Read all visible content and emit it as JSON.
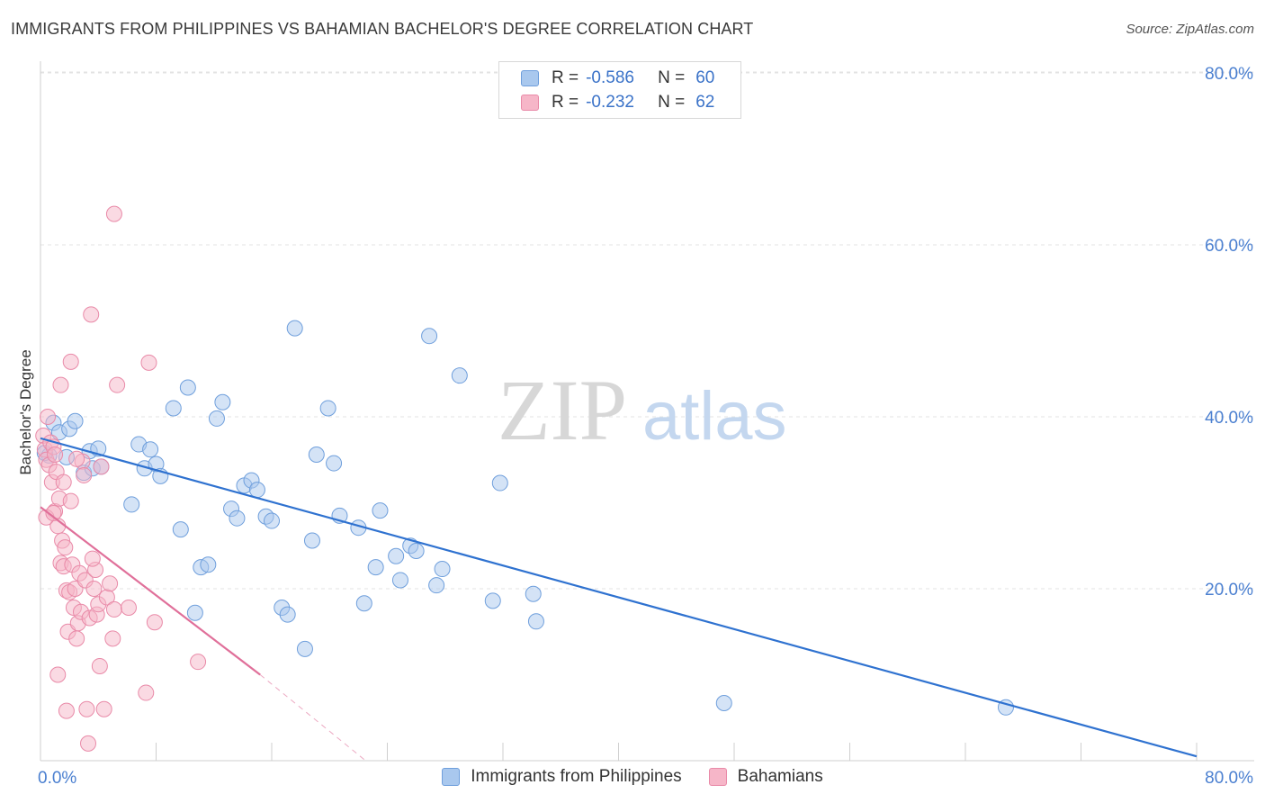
{
  "header": {
    "title": "IMMIGRANTS FROM PHILIPPINES VS BAHAMIAN BACHELOR'S DEGREE CORRELATION CHART",
    "source": "Source: ZipAtlas.com"
  },
  "watermark": {
    "zip": "ZIP",
    "atlas": "atlas"
  },
  "legend": {
    "rows": [
      {
        "r_label": "R =",
        "r_value": "-0.586",
        "n_label": "N =",
        "n_value": "60",
        "color": "#a9c8ee"
      },
      {
        "r_label": "R =",
        "r_value": "-0.232",
        "n_label": "N =",
        "n_value": "62",
        "color": "#f6b6c8"
      }
    ]
  },
  "chart_data": {
    "type": "scatter",
    "title": "IMMIGRANTS FROM PHILIPPINES VS BAHAMIAN BACHELOR'S DEGREE CORRELATION CHART",
    "xlabel": "",
    "ylabel": "Bachelor's Degree",
    "xlim": [
      0,
      80
    ],
    "ylim": [
      0,
      80
    ],
    "x_tick_labels": [
      "0.0%",
      "80.0%"
    ],
    "y_tick_labels": [
      "20.0%",
      "40.0%",
      "60.0%",
      "80.0%"
    ],
    "y_tick_values": [
      20,
      40,
      60,
      80
    ],
    "grid": true,
    "legend_position": "top-center",
    "series": [
      {
        "name": "Immigrants from Philippines",
        "color": "#a9c8ee",
        "stroke": "#6f9fdc",
        "trend_color": "#2f72d0",
        "trend": {
          "x0": 0,
          "y0": 37.5,
          "x1": 80,
          "y1": 0.5
        },
        "points": [
          [
            0.6,
            35.5
          ],
          [
            0.9,
            39.3
          ],
          [
            1.3,
            38.2
          ],
          [
            1.8,
            35.3
          ],
          [
            2.0,
            38.6
          ],
          [
            2.4,
            39.5
          ],
          [
            3.0,
            33.5
          ],
          [
            3.4,
            36.0
          ],
          [
            3.6,
            34.0
          ],
          [
            4.0,
            36.3
          ],
          [
            4.2,
            34.2
          ],
          [
            6.3,
            29.8
          ],
          [
            6.8,
            36.8
          ],
          [
            7.2,
            34.0
          ],
          [
            7.6,
            36.2
          ],
          [
            8.0,
            34.5
          ],
          [
            8.3,
            33.1
          ],
          [
            9.2,
            41.0
          ],
          [
            9.7,
            26.9
          ],
          [
            10.2,
            43.4
          ],
          [
            10.7,
            17.2
          ],
          [
            11.1,
            22.5
          ],
          [
            11.6,
            22.8
          ],
          [
            12.2,
            39.8
          ],
          [
            12.6,
            41.7
          ],
          [
            13.2,
            29.3
          ],
          [
            13.6,
            28.2
          ],
          [
            14.1,
            32.0
          ],
          [
            14.6,
            32.6
          ],
          [
            15.0,
            31.5
          ],
          [
            15.6,
            28.4
          ],
          [
            16.0,
            27.9
          ],
          [
            16.7,
            17.8
          ],
          [
            17.1,
            17.0
          ],
          [
            17.6,
            50.3
          ],
          [
            18.3,
            13.0
          ],
          [
            18.8,
            25.6
          ],
          [
            19.1,
            35.6
          ],
          [
            19.9,
            41.0
          ],
          [
            20.3,
            34.6
          ],
          [
            20.7,
            28.5
          ],
          [
            22.0,
            27.1
          ],
          [
            22.4,
            18.3
          ],
          [
            23.2,
            22.5
          ],
          [
            23.5,
            29.1
          ],
          [
            24.6,
            23.8
          ],
          [
            24.9,
            21.0
          ],
          [
            25.6,
            25.0
          ],
          [
            26.0,
            24.4
          ],
          [
            26.9,
            49.4
          ],
          [
            27.4,
            20.4
          ],
          [
            27.8,
            22.3
          ],
          [
            29.0,
            44.8
          ],
          [
            31.3,
            18.6
          ],
          [
            31.8,
            32.3
          ],
          [
            34.1,
            19.4
          ],
          [
            34.3,
            16.2
          ],
          [
            47.3,
            6.7
          ],
          [
            66.8,
            6.2
          ],
          [
            0.3,
            35.8
          ]
        ]
      },
      {
        "name": "Bahamians",
        "color": "#f6b6c8",
        "stroke": "#e98aa8",
        "trend_color": "#e0709a",
        "trend": {
          "x0": 0,
          "y0": 29.5,
          "x1": 15.2,
          "y1": 10.0
        },
        "trend_dash": {
          "x0": 15.2,
          "y0": 10.0,
          "x1": 22.5,
          "y1": 0.0
        },
        "points": [
          [
            0.2,
            37.8
          ],
          [
            0.3,
            36.2
          ],
          [
            0.4,
            35.0
          ],
          [
            0.5,
            40.0
          ],
          [
            0.6,
            34.4
          ],
          [
            0.7,
            37.0
          ],
          [
            0.8,
            32.4
          ],
          [
            0.9,
            36.5
          ],
          [
            1.0,
            29.0
          ],
          [
            1.0,
            35.6
          ],
          [
            1.1,
            33.6
          ],
          [
            1.2,
            27.3
          ],
          [
            1.3,
            30.5
          ],
          [
            1.4,
            23.0
          ],
          [
            1.4,
            43.7
          ],
          [
            1.5,
            25.6
          ],
          [
            1.6,
            22.6
          ],
          [
            1.6,
            32.4
          ],
          [
            1.7,
            24.8
          ],
          [
            1.8,
            19.8
          ],
          [
            1.9,
            15.0
          ],
          [
            2.0,
            19.6
          ],
          [
            2.1,
            46.4
          ],
          [
            2.1,
            30.2
          ],
          [
            2.2,
            22.8
          ],
          [
            2.3,
            17.8
          ],
          [
            2.4,
            20.0
          ],
          [
            2.5,
            14.2
          ],
          [
            2.6,
            16.0
          ],
          [
            2.7,
            21.8
          ],
          [
            2.8,
            17.3
          ],
          [
            2.9,
            34.8
          ],
          [
            3.0,
            33.2
          ],
          [
            3.1,
            21.0
          ],
          [
            3.2,
            6.0
          ],
          [
            3.3,
            2.0
          ],
          [
            3.4,
            16.6
          ],
          [
            3.5,
            51.9
          ],
          [
            3.7,
            20.0
          ],
          [
            3.8,
            22.2
          ],
          [
            3.9,
            17.0
          ],
          [
            4.0,
            18.2
          ],
          [
            4.1,
            11.0
          ],
          [
            4.2,
            34.2
          ],
          [
            4.4,
            6.0
          ],
          [
            4.6,
            19.0
          ],
          [
            4.8,
            20.6
          ],
          [
            5.0,
            14.2
          ],
          [
            5.1,
            17.6
          ],
          [
            5.1,
            63.6
          ],
          [
            5.3,
            43.7
          ],
          [
            6.1,
            17.8
          ],
          [
            7.3,
            7.9
          ],
          [
            7.5,
            46.3
          ],
          [
            7.9,
            16.1
          ],
          [
            10.9,
            11.5
          ],
          [
            0.4,
            28.3
          ],
          [
            0.9,
            28.8
          ],
          [
            1.2,
            10.0
          ],
          [
            1.8,
            5.8
          ],
          [
            2.5,
            35.1
          ],
          [
            3.6,
            23.5
          ]
        ]
      }
    ]
  },
  "bottom_legend": [
    {
      "label": "Immigrants from Philippines",
      "color": "#a9c8ee",
      "stroke": "#6f9fdc"
    },
    {
      "label": "Bahamians",
      "color": "#f6b6c8",
      "stroke": "#e98aa8"
    }
  ]
}
